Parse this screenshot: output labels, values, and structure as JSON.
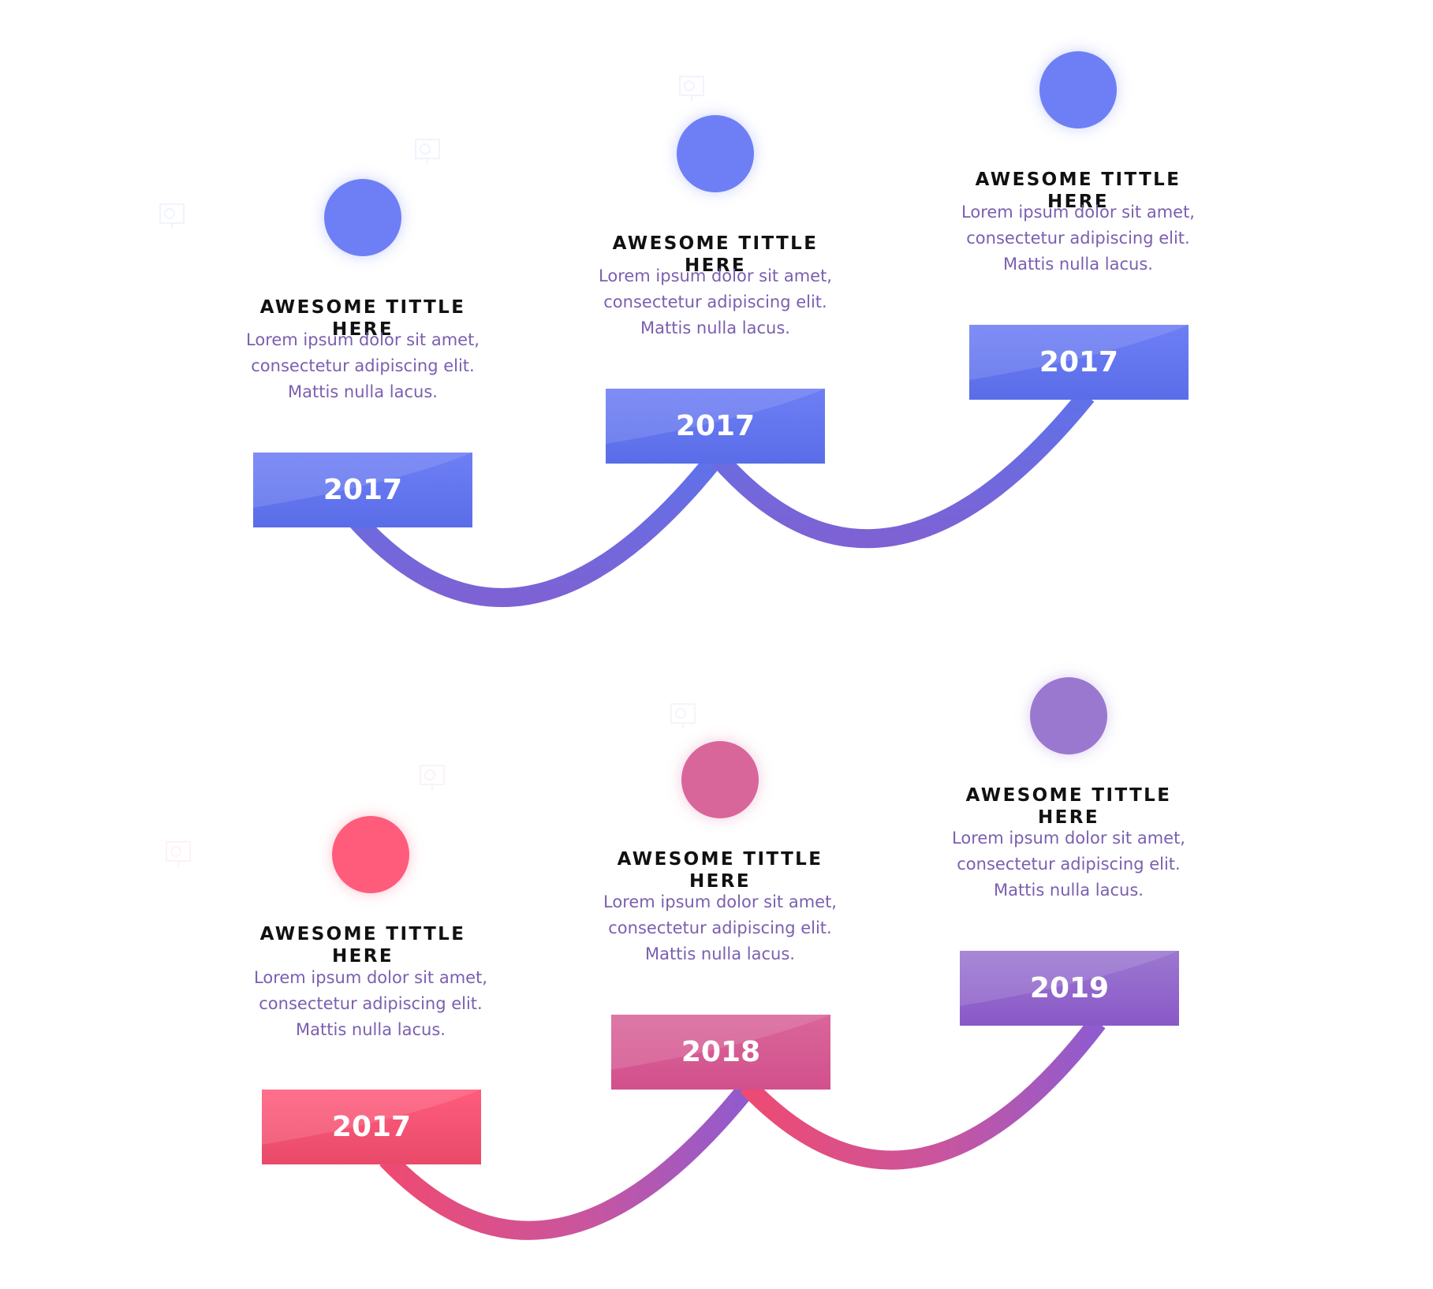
{
  "top_row": [
    {
      "title": "AWESOME TITTLE HERE",
      "line1": "Lorem ipsum dolor sit amet,",
      "line2": "consectetur adipiscing elit.",
      "line3": "Mattis nulla lacus.",
      "year": "2017",
      "color": "#6e7ff5"
    },
    {
      "title": "AWESOME TITTLE HERE",
      "line1": "Lorem ipsum dolor sit amet,",
      "line2": "consectetur adipiscing elit.",
      "line3": "Mattis nulla lacus.",
      "year": "2017",
      "color": "#6e7ff5"
    },
    {
      "title": "AWESOME TITTLE HERE",
      "line1": "Lorem ipsum dolor sit amet,",
      "line2": "consectetur adipiscing elit.",
      "line3": "Mattis nulla lacus.",
      "year": "2017",
      "color": "#6e7ff5"
    }
  ],
  "bottom_row": [
    {
      "title": "AWESOME TITTLE HERE",
      "line1": "Lorem ipsum dolor sit amet,",
      "line2": "consectetur adipiscing elit.",
      "line3": "Mattis nulla lacus.",
      "year": "2017",
      "color": "#ff5c7c"
    },
    {
      "title": "AWESOME TITTLE HERE",
      "line1": "Lorem ipsum dolor sit amet,",
      "line2": "consectetur adipiscing elit.",
      "line3": "Mattis nulla lacus.",
      "year": "2018",
      "color": "#d9669a"
    },
    {
      "title": "AWESOME TITTLE HERE",
      "line1": "Lorem ipsum dolor sit amet,",
      "line2": "consectetur adipiscing elit.",
      "line3": "Mattis nulla lacus.",
      "year": "2019",
      "color": "#9b78d0"
    }
  ],
  "icons": [
    "presentation-board-icon"
  ]
}
